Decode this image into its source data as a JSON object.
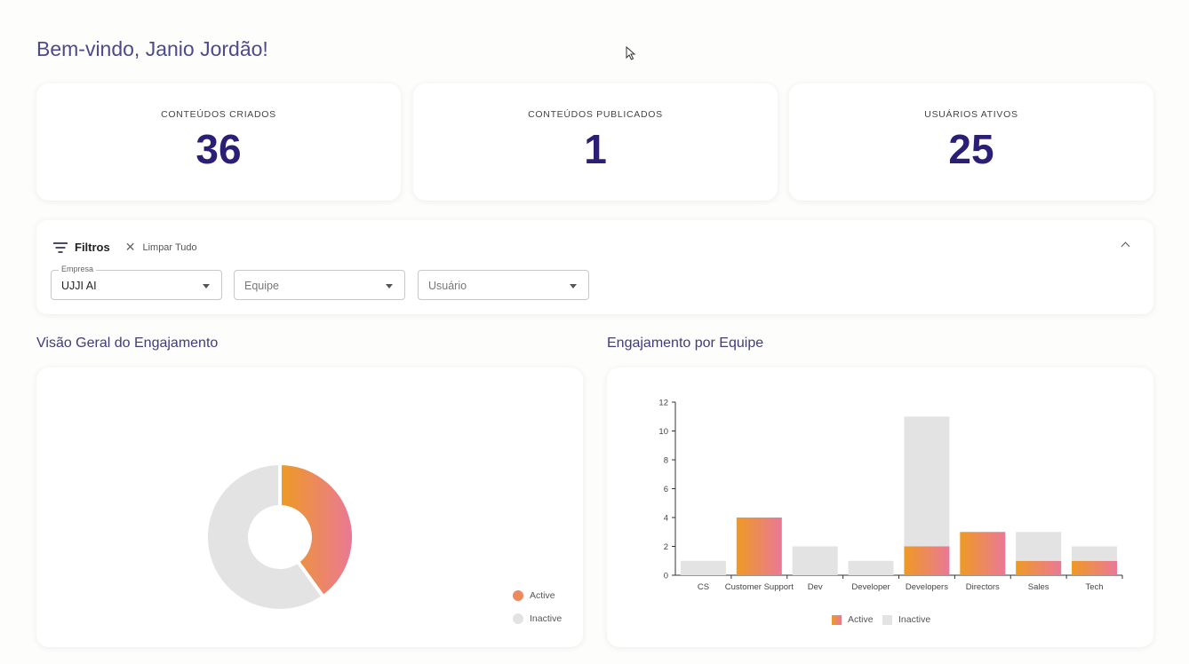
{
  "welcome": "Bem-vindo, Janio Jordão!",
  "stats": [
    {
      "label": "CONTEÚDOS CRIADOS",
      "value": "36"
    },
    {
      "label": "CONTEÚDOS PUBLICADOS",
      "value": "1"
    },
    {
      "label": "USUÁRIOS ATIVOS",
      "value": "25"
    }
  ],
  "filters": {
    "title": "Filtros",
    "clear_label": "Limpar Tudo",
    "empresa": {
      "legend": "Empresa",
      "value": "UJJI AI"
    },
    "equipe": {
      "placeholder": "Equipe"
    },
    "usuario": {
      "placeholder": "Usuário"
    }
  },
  "sections": {
    "overview": "Visão Geral do Engajamento",
    "by_team": "Engajamento por Equipe"
  },
  "colors": {
    "active_start": "#ee9a24",
    "active_end": "#ea7898",
    "inactive": "#e3e3e3",
    "brand": "#2a1f75"
  },
  "chart_data": [
    {
      "type": "pie",
      "title": "Visão Geral do Engajamento",
      "labels": [
        "Active",
        "Inactive"
      ],
      "values": [
        10,
        15
      ],
      "legend": [
        "Active",
        "Inactive"
      ]
    },
    {
      "type": "bar",
      "title": "Engajamento por Equipe",
      "stacked": true,
      "categories": [
        "CS",
        "Customer Support",
        "Dev",
        "Developer",
        "Developers",
        "Directors",
        "Sales",
        "Tech"
      ],
      "series": [
        {
          "name": "Active",
          "values": [
            0,
            4,
            0,
            0,
            2,
            3,
            1,
            1
          ]
        },
        {
          "name": "Inactive",
          "values": [
            1,
            0,
            2,
            1,
            9,
            0,
            2,
            1
          ]
        }
      ],
      "yticks": [
        0,
        2,
        4,
        6,
        8,
        10,
        12
      ],
      "ylim": [
        0,
        12
      ]
    }
  ]
}
